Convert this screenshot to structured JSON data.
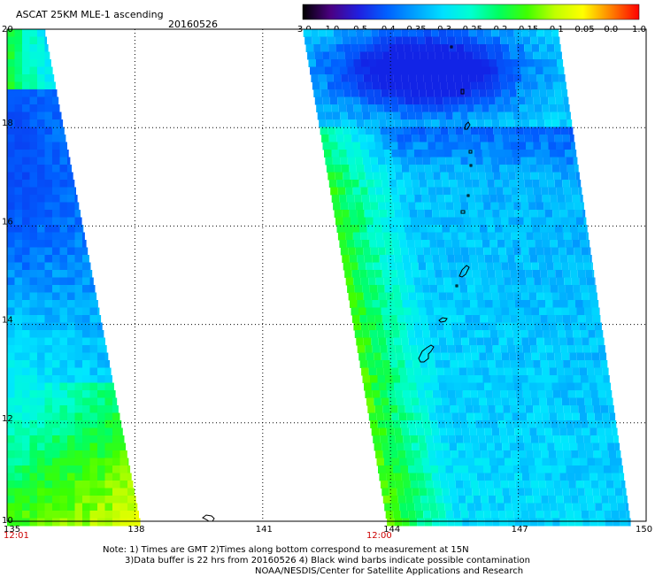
{
  "header": {
    "title": "ASCAT 25KM MLE-1 ascending",
    "date": "20160526"
  },
  "colorbar": {
    "labels": [
      "-3.0",
      "-1.0",
      "-0.5",
      "-0.4",
      "-0.35",
      "-0.3",
      "-0.25",
      "-0.2",
      "-0.15",
      "-0.1",
      "-0.05",
      "0.0",
      "1.0"
    ],
    "colors": [
      "#000000",
      "#4b0082",
      "#2020e0",
      "#0060ff",
      "#00a0ff",
      "#00e0ff",
      "#00ffd0",
      "#00ff60",
      "#40ff00",
      "#c0ff00",
      "#ffff00",
      "#ff8000",
      "#ff0000"
    ]
  },
  "map": {
    "lon_ticks": [
      "135",
      "138",
      "141",
      "144",
      "147",
      "150"
    ],
    "lat_ticks": [
      "20",
      "18",
      "16",
      "14",
      "12",
      "10"
    ],
    "time_labels": [
      {
        "text": "12:01",
        "lon": 135
      },
      {
        "text": "12:00",
        "lon": 143.6
      }
    ],
    "time_color": "#cc0000"
  },
  "footer": {
    "line1": "Note: 1) Times are GMT 2)Times along bottom correspond to measurement at 15N",
    "line2": "3)Data buffer is 22 hrs from 20160526 4) Black wind barbs indicate possible contamination",
    "line3": "NOAA/NESDIS/Center for Satellite Applications and Research"
  }
}
